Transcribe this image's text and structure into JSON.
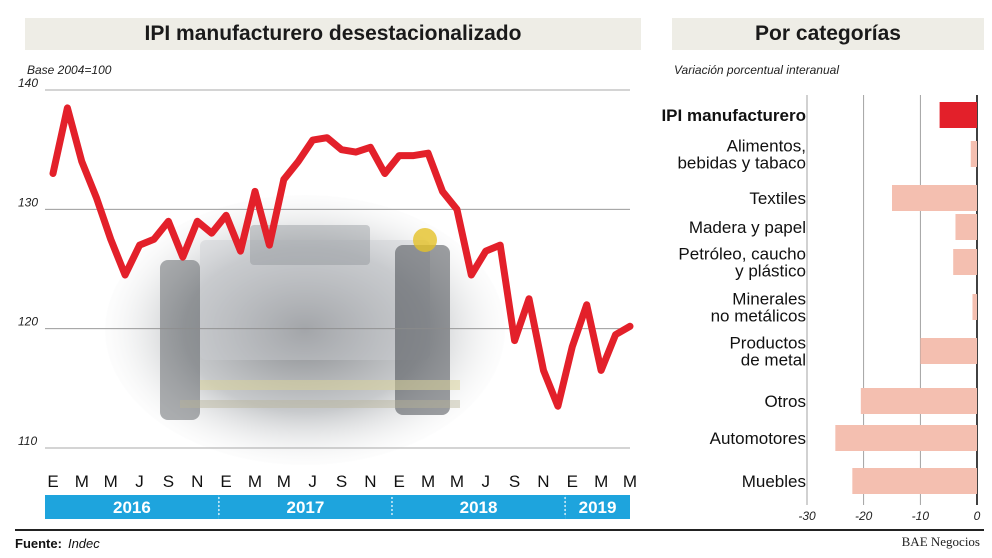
{
  "left": {
    "title": "IPI manufacturero desestacionalizado",
    "subtitle": "Base 2004=100"
  },
  "right": {
    "title": "Por categorías",
    "subtitle": "Variación porcentual interanual"
  },
  "footer": {
    "source_label": "Fuente:",
    "source_value": "Indec",
    "credit": "BAE Negocios"
  },
  "colors": {
    "line": "#e3202a",
    "bar_highlight": "#e3202a",
    "bar": "#f4bfb0",
    "year_band": "#1ea4dd",
    "title_bg": "#eeede6"
  },
  "chart_data": [
    {
      "type": "line",
      "title": "IPI manufacturero desestacionalizado",
      "subtitle": "Base 2004=100",
      "ylim": [
        110,
        140
      ],
      "yticks": [
        110,
        120,
        130,
        140
      ],
      "xtick_labels": [
        "E",
        "M",
        "M",
        "J",
        "S",
        "N",
        "E",
        "M",
        "M",
        "J",
        "S",
        "N",
        "E",
        "M",
        "M",
        "J",
        "S",
        "N",
        "E",
        "M",
        "M"
      ],
      "years": [
        {
          "label": "2016",
          "months": 12
        },
        {
          "label": "2017",
          "months": 12
        },
        {
          "label": "2018",
          "months": 12
        },
        {
          "label": "2019",
          "months": 5
        }
      ],
      "grid": true,
      "series": [
        {
          "values": [
            133,
            138.5,
            134,
            131,
            127.5,
            124.5,
            127,
            127.5,
            129,
            126,
            129,
            128,
            129.5,
            126.5,
            131.5,
            127,
            132.5,
            134,
            135.8,
            136,
            135,
            134.8,
            135.2,
            133,
            134.5,
            134.5,
            134.7,
            131.5,
            130,
            124.5,
            126.5,
            127,
            119,
            122.5,
            116.5,
            113.5,
            118.5,
            122,
            116.5,
            119.5,
            120.2
          ]
        }
      ]
    },
    {
      "type": "bar",
      "orientation": "horizontal",
      "title": "Por categorías",
      "subtitle": "Variación porcentual interanual",
      "xlim": [
        -30,
        0
      ],
      "xticks": [
        -30,
        -20,
        -10,
        0
      ],
      "grid": true,
      "categories": [
        "IPI manufacturero",
        "Alimentos, bebidas y tabaco",
        "Textiles",
        "Madera y papel",
        "Petróleo, caucho y plástico",
        "Minerales no metálicos",
        "Productos de metal",
        "Otros",
        "Automotores",
        "Muebles"
      ],
      "category_lines": [
        [
          "IPI manufacturero"
        ],
        [
          "Alimentos,",
          "bebidas y tabaco"
        ],
        [
          "Textiles"
        ],
        [
          "Madera y papel"
        ],
        [
          "Petróleo, caucho",
          "y plástico"
        ],
        [
          "Minerales",
          "no metálicos"
        ],
        [
          "Productos",
          "de metal"
        ],
        [
          "Otros"
        ],
        [
          "Automotores"
        ],
        [
          "Muebles"
        ]
      ],
      "values": [
        -6.6,
        -1.1,
        -15,
        -3.8,
        -4.2,
        -0.8,
        -10,
        -20.5,
        -25,
        -22
      ],
      "highlight": [
        0
      ]
    }
  ]
}
